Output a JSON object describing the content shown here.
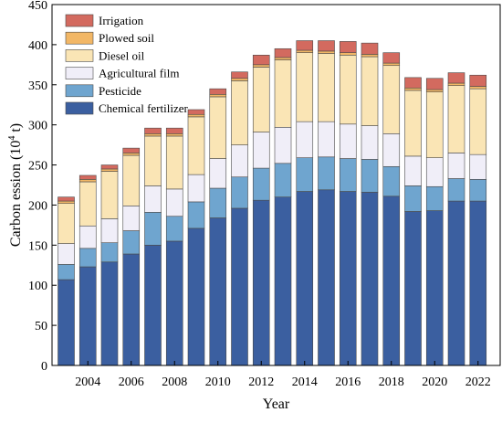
{
  "chart_data": {
    "type": "bar",
    "stacked": true,
    "title": "",
    "xlabel": "Year",
    "ylabel": "Carbon ession (10",
    "ylabel_sup": "4",
    "ylabel_unit": " t)",
    "ylim": [
      0,
      450
    ],
    "yticks": [
      0,
      50,
      100,
      150,
      200,
      250,
      300,
      350,
      400,
      450
    ],
    "categories": [
      "2003",
      "2004",
      "2005",
      "2006",
      "2007",
      "2008",
      "2009",
      "2010",
      "2011",
      "2012",
      "2013",
      "2014",
      "2015",
      "2016",
      "2017",
      "2018",
      "2019",
      "2020",
      "2021",
      "2022"
    ],
    "xtick_labels": [
      "2004",
      "2006",
      "2008",
      "2010",
      "2012",
      "2014",
      "2016",
      "2018",
      "2020",
      "2022"
    ],
    "legend_position": "top-left",
    "grid": false,
    "series": [
      {
        "name": "Chemical fertilizer",
        "color": "#3b5fa0",
        "values": [
          107,
          123,
          129,
          139,
          150,
          155,
          171,
          184,
          196,
          206,
          210,
          217,
          219,
          217,
          216,
          211,
          192,
          193,
          205,
          205
        ]
      },
      {
        "name": "Pesticide",
        "color": "#6fa5cf",
        "values": [
          19,
          23,
          24,
          29,
          41,
          31,
          33,
          37,
          39,
          40,
          42,
          42,
          41,
          41,
          41,
          37,
          32,
          30,
          28,
          27
        ]
      },
      {
        "name": "Agricultural film",
        "color": "#f0eef8",
        "values": [
          26,
          28,
          30,
          31,
          33,
          34,
          34,
          37,
          40,
          45,
          45,
          45,
          44,
          43,
          42,
          41,
          37,
          36,
          32,
          31
        ]
      },
      {
        "name": "Diesel oil",
        "color": "#fae5b5",
        "values": [
          50,
          55,
          59,
          63,
          62,
          66,
          72,
          77,
          80,
          81,
          84,
          86,
          85,
          86,
          86,
          85,
          82,
          82,
          84,
          82
        ]
      },
      {
        "name": "Plowed soil",
        "color": "#f2b766",
        "values": [
          3,
          3,
          3,
          3,
          3,
          3,
          3,
          3,
          3,
          3,
          3,
          3,
          3,
          3,
          3,
          3,
          3,
          3,
          3,
          3
        ]
      },
      {
        "name": "Irrigation",
        "color": "#d36a5f",
        "values": [
          5,
          5,
          5,
          6,
          7,
          7,
          6,
          7,
          8,
          12,
          11,
          12,
          13,
          14,
          14,
          13,
          13,
          14,
          13,
          14
        ]
      }
    ]
  }
}
